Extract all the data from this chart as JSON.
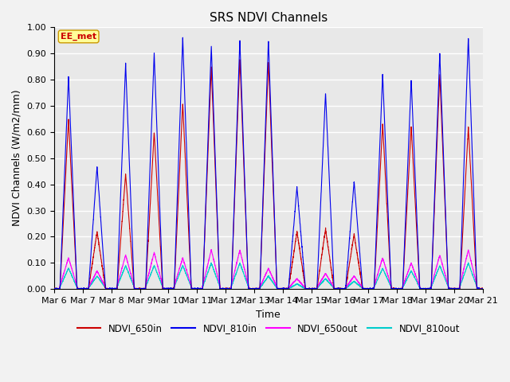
{
  "title": "SRS NDVI Channels",
  "ylabel": "NDVI Channels (W/m2/mm)",
  "xlabel": "Time",
  "ylim": [
    0.0,
    1.0
  ],
  "yticks": [
    0.0,
    0.1,
    0.2,
    0.3,
    0.4,
    0.5,
    0.6,
    0.7,
    0.8,
    0.9,
    1.0
  ],
  "xtick_labels": [
    "Mar 6",
    "Mar 7",
    "Mar 8",
    "Mar 9",
    "Mar 10",
    "Mar 11",
    "Mar 12",
    "Mar 13",
    "Mar 14",
    "Mar 15",
    "Mar 16",
    "Mar 17",
    "Mar 18",
    "Mar 19",
    "Mar 20",
    "Mar 21"
  ],
  "line_colors": {
    "NDVI_650in": "#cc0000",
    "NDVI_810in": "#0000ee",
    "NDVI_650out": "#ff00ff",
    "NDVI_810out": "#00cccc"
  },
  "annotation_text": "EE_met",
  "annotation_color": "#cc0000",
  "annotation_box_color": "#ffff99",
  "background_color": "#e8e8e8",
  "grid_color": "#ffffff",
  "title_fontsize": 11,
  "label_fontsize": 9,
  "tick_fontsize": 8,
  "day_peaks_810in": [
    0.81,
    0.47,
    0.86,
    0.9,
    0.96,
    0.93,
    0.95,
    0.95,
    0.39,
    0.75,
    0.41,
    0.82,
    0.8,
    0.9,
    0.96
  ],
  "day_peaks_650in": [
    0.65,
    0.22,
    0.44,
    0.6,
    0.71,
    0.85,
    0.88,
    0.87,
    0.22,
    0.23,
    0.21,
    0.63,
    0.62,
    0.82,
    0.62
  ],
  "day_peaks_650out": [
    0.12,
    0.07,
    0.13,
    0.14,
    0.12,
    0.15,
    0.15,
    0.08,
    0.04,
    0.06,
    0.05,
    0.12,
    0.1,
    0.13,
    0.15
  ],
  "day_peaks_810out": [
    0.08,
    0.05,
    0.09,
    0.09,
    0.09,
    0.1,
    0.1,
    0.05,
    0.02,
    0.04,
    0.03,
    0.08,
    0.07,
    0.09,
    0.1
  ]
}
